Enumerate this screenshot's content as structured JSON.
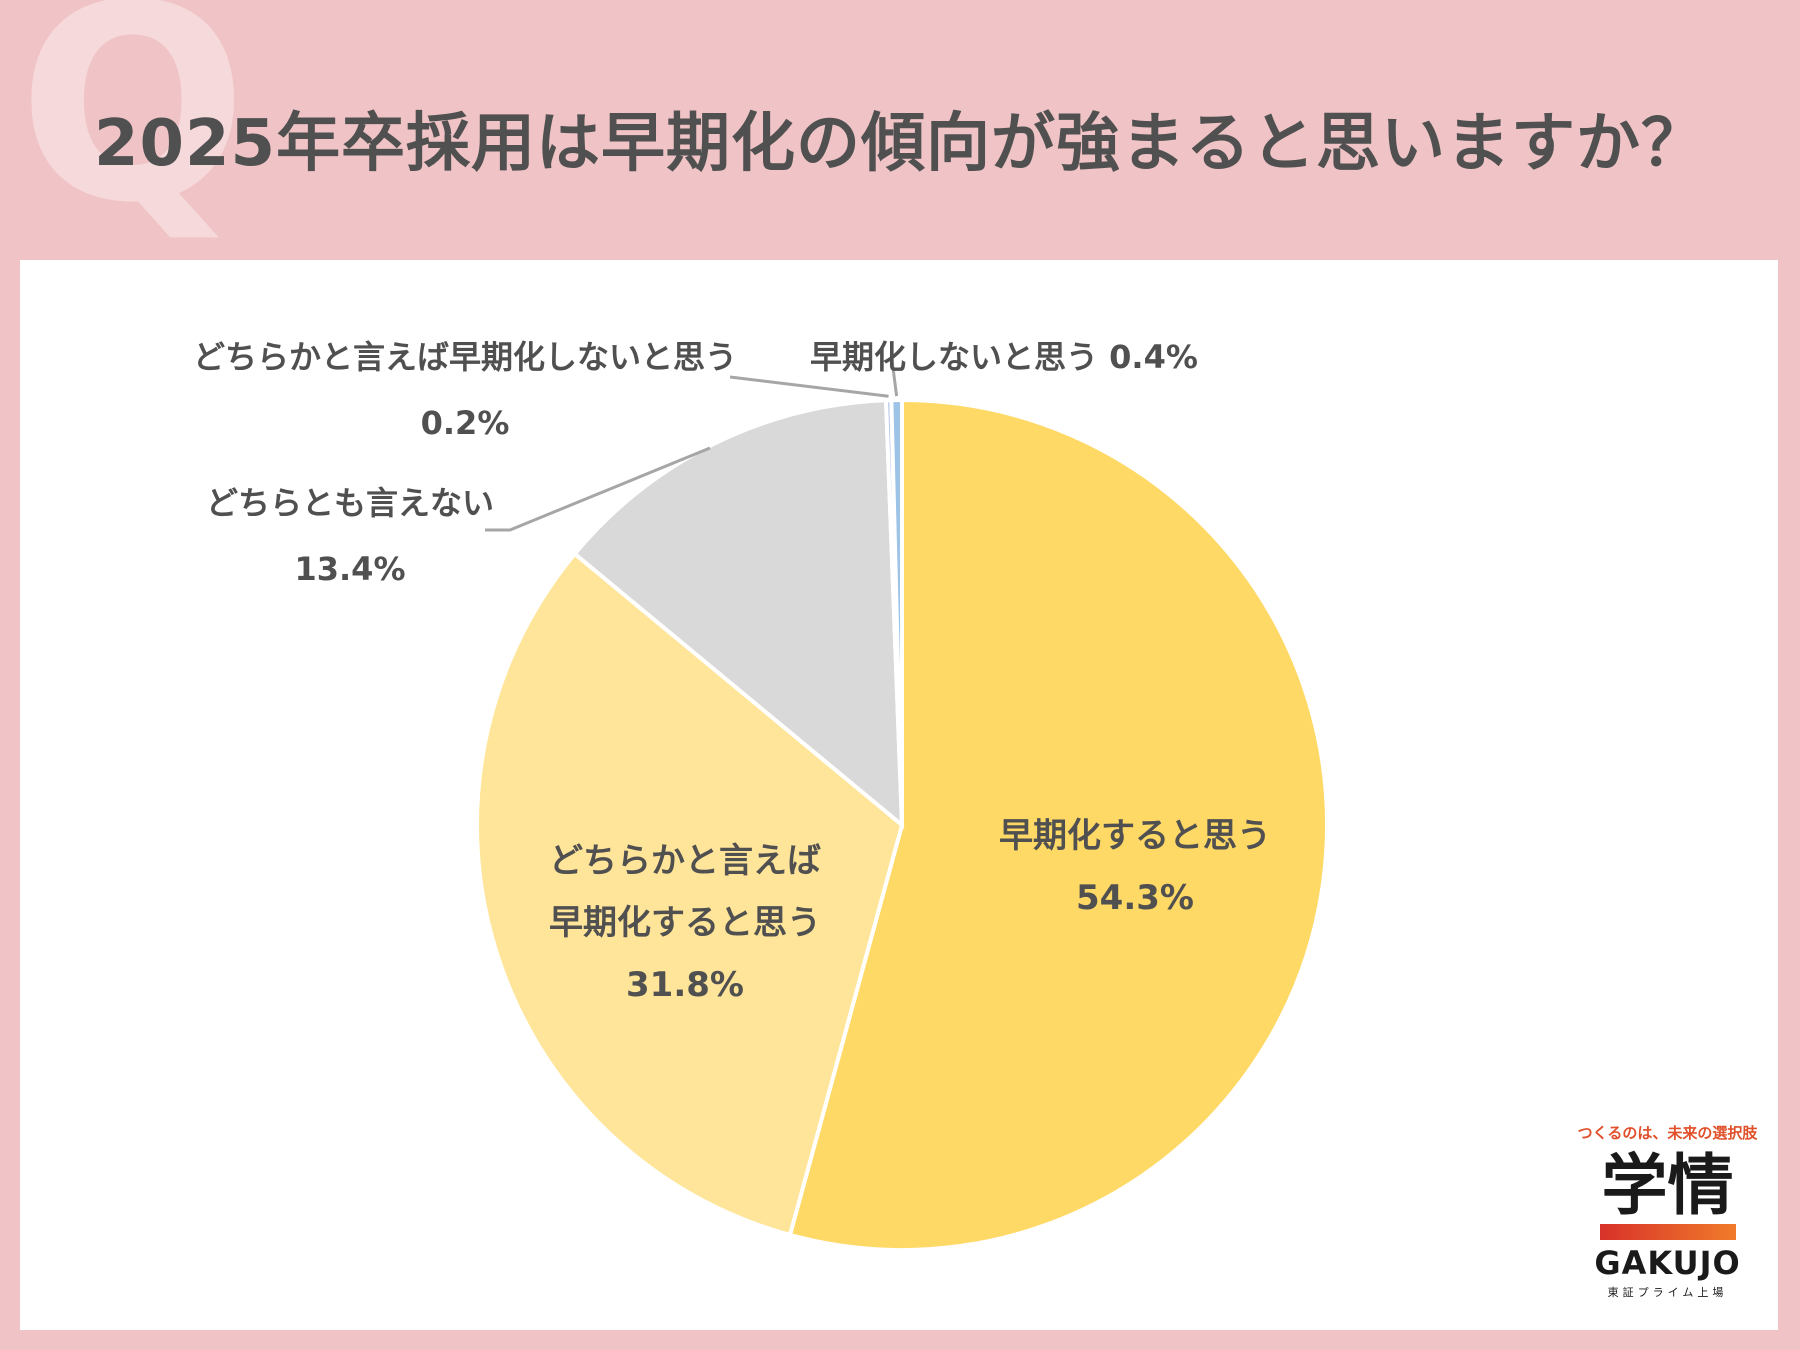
{
  "header": {
    "q_mark": "Q",
    "title": "2025年卒採用は早期化の傾向が強まると思いますか？"
  },
  "chart_data": {
    "type": "pie",
    "title": "2025年卒採用は早期化の傾向が強まると思いますか？",
    "slices": [
      {
        "label": "早期化すると思う",
        "value": 54.3,
        "value_label": "54.3%",
        "color": "#ffd966"
      },
      {
        "label": "どちらかと言えば早期化すると思う",
        "value": 31.8,
        "value_label": "31.8%",
        "color": "#ffe599"
      },
      {
        "label": "どちらとも言えない",
        "value": 13.4,
        "value_label": "13.4%",
        "color": "#d9d9d9"
      },
      {
        "label": "どちらかと言えば早期化しないと思う",
        "value": 0.2,
        "value_label": "0.2%",
        "color": "#b4c7e7"
      },
      {
        "label": "早期化しないと思う",
        "value": 0.4,
        "value_label": "0.4%",
        "color": "#9dc3e6"
      }
    ],
    "start": "top (12 o'clock), clockwise"
  },
  "labels": {
    "s0_line1": "早期化すると思う",
    "s0_line2": "54.3%",
    "s1_line1": "どちらかと言えば",
    "s1_line2": "早期化すると思う",
    "s1_line3": "31.8%",
    "s2_line1": "どちらとも言えない",
    "s2_line2": "13.4%",
    "s3_line1": "どちらかと言えば早期化しないと思う",
    "s3_line2": "0.2%",
    "s4_line1": "早期化しないと思う 0.4%"
  },
  "logo": {
    "tagline": "つくるのは、未来の選択肢",
    "mark": "学情",
    "name": "GAKUJO",
    "sub": "東証プライム上場",
    "colors": [
      "#d8322a",
      "#f07b2a"
    ]
  }
}
